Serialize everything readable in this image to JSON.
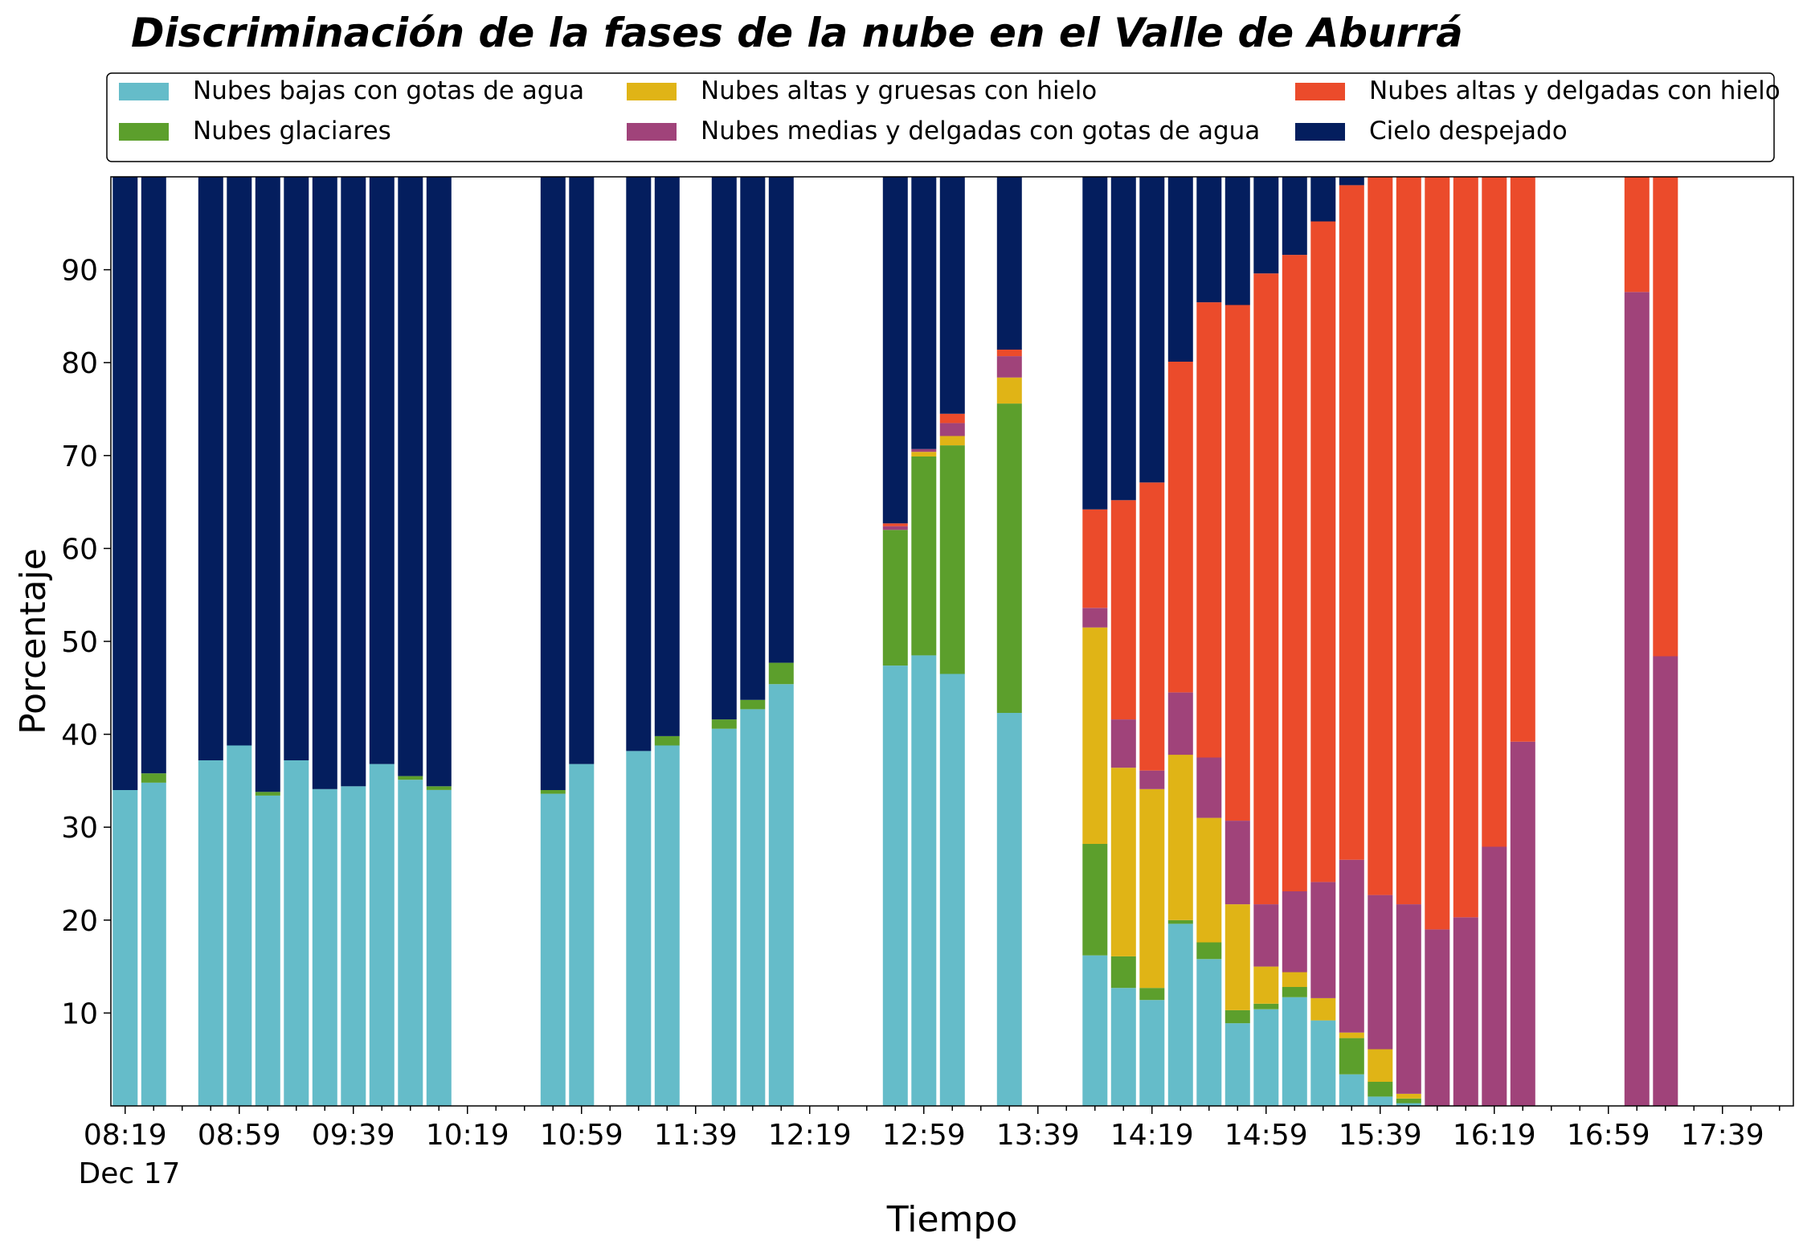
{
  "chart_data": {
    "type": "bar",
    "stacked": true,
    "title": "Discriminación de la fases de la nube en el Valle de Aburrá",
    "xlabel": "Tiempo",
    "ylabel": "Porcentaje",
    "ylim": [
      0,
      100
    ],
    "yticks": [
      10,
      20,
      30,
      40,
      50,
      60,
      70,
      80,
      90
    ],
    "xtick_labels": [
      "08:19",
      "08:59",
      "09:39",
      "10:19",
      "10:59",
      "11:39",
      "12:19",
      "12:59",
      "13:39",
      "14:19",
      "14:59",
      "15:39",
      "16:19",
      "16:59",
      "17:39"
    ],
    "date_label": "Dec 17",
    "legend_position": "top",
    "grid": false,
    "x": [
      "08:19",
      "08:29",
      "08:49",
      "08:59",
      "09:09",
      "09:19",
      "09:29",
      "09:39",
      "09:49",
      "09:59",
      "10:09",
      "10:49",
      "10:59",
      "11:19",
      "11:29",
      "11:49",
      "11:59",
      "12:09",
      "12:49",
      "12:59",
      "13:09",
      "13:29",
      "13:59",
      "14:09",
      "14:19",
      "14:29",
      "14:39",
      "14:49",
      "14:59",
      "15:09",
      "15:19",
      "15:29",
      "15:39",
      "15:49",
      "15:59",
      "16:09",
      "16:19",
      "16:29",
      "16:39",
      "17:09",
      "17:19"
    ],
    "series": [
      {
        "name": "Nubes bajas con gotas de agua",
        "color": "#65BCC9",
        "values": [
          34,
          34.8,
          37.2,
          38.8,
          33.4,
          37.2,
          34.1,
          34.4,
          36.8,
          35.1,
          34,
          33.6,
          36.8,
          38.2,
          38.8,
          40.6,
          42.7,
          45.4,
          47.4,
          48.5,
          46.5,
          42.3,
          16.2,
          12.7,
          11.4,
          19.6,
          15.8,
          8.9,
          10.4,
          11.7,
          9.2,
          3.4,
          1,
          0.3,
          0,
          0,
          0,
          0,
          0,
          0,
          0
        ]
      },
      {
        "name": "Nubes glaciares",
        "color": "#5C9F2C",
        "values": [
          0,
          1,
          0,
          0,
          0.4,
          0,
          0,
          0,
          0,
          0.4,
          0.4,
          0.4,
          0,
          0,
          1,
          1,
          1,
          2.3,
          14.6,
          21.4,
          24.6,
          33.3,
          12,
          3.4,
          1.3,
          0.4,
          1.8,
          1.4,
          0.6,
          1.1,
          0,
          3.9,
          1.6,
          0.5,
          0,
          0,
          0,
          0,
          0,
          0,
          0
        ]
      },
      {
        "name": "Nubes altas y gruesas con hielo",
        "color": "#E0B416",
        "values": [
          0,
          0,
          0,
          0,
          0,
          0,
          0,
          0,
          0,
          0,
          0,
          0,
          0,
          0,
          0,
          0,
          0,
          0,
          0,
          0.5,
          1,
          2.8,
          23.3,
          20.3,
          21.4,
          17.8,
          13.4,
          11.4,
          4,
          1.6,
          2.4,
          0.6,
          3.5,
          0.5,
          0,
          0,
          0,
          0,
          0,
          0,
          0
        ]
      },
      {
        "name": "Nubes medias y delgadas con gotas de agua",
        "color": "#A0437A",
        "values": [
          0,
          0,
          0,
          0,
          0,
          0,
          0,
          0,
          0,
          0,
          0,
          0,
          0,
          0,
          0,
          0,
          0,
          0,
          0.4,
          0.3,
          1.4,
          2.3,
          2.1,
          5.2,
          2,
          6.7,
          6.5,
          9,
          6.7,
          8.7,
          12.5,
          18.6,
          16.6,
          20.4,
          19,
          20.3,
          27.9,
          39.2,
          0,
          87.6,
          48.4
        ]
      },
      {
        "name": "Nubes altas y delgadas con hielo",
        "color": "#EB4B2B",
        "values": [
          0,
          0,
          0,
          0,
          0,
          0,
          0,
          0,
          0,
          0,
          0,
          0,
          0,
          0,
          0,
          0,
          0,
          0,
          0.3,
          0,
          1,
          0.7,
          10.6,
          23.6,
          31,
          35.6,
          49,
          55.5,
          67.9,
          68.5,
          71.1,
          72.6,
          77.3,
          78.3,
          81,
          79.7,
          72.1,
          60.8,
          0,
          12.4,
          51.6
        ]
      },
      {
        "name": "Cielo despejado",
        "color": "#041E5E",
        "values": [
          66,
          64.2,
          62.8,
          61.2,
          66.2,
          62.8,
          65.9,
          65.6,
          63.2,
          64.5,
          65.6,
          66,
          63.2,
          61.8,
          60.2,
          58.4,
          56.3,
          52.3,
          37.3,
          29.3,
          25.5,
          18.6,
          35.8,
          34.8,
          32.9,
          19.9,
          13.5,
          13.8,
          10.4,
          8.4,
          4.8,
          0.9,
          0,
          0,
          0,
          0,
          0,
          0,
          0,
          0,
          0
        ]
      }
    ]
  }
}
